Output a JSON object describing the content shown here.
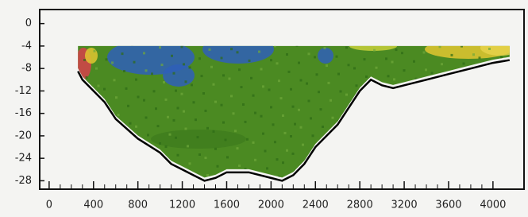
{
  "chart_data": {
    "type": "line",
    "x": [
      260,
      300,
      400,
      500,
      600,
      800,
      1000,
      1100,
      1200,
      1300,
      1400,
      1500,
      1600,
      1800,
      2000,
      2100,
      2200,
      2300,
      2400,
      2600,
      2800,
      2900,
      3000,
      3100,
      3200,
      3400,
      3600,
      3800,
      4000,
      4150
    ],
    "series": [
      {
        "color": "#000000",
        "values": [
          -8.5,
          -10,
          -12,
          -14,
          -17,
          -20.5,
          -23,
          -25,
          -26,
          -27,
          -28,
          -27.5,
          -26.5,
          -26.5,
          -27.5,
          -28,
          -27,
          -25,
          -22,
          -18,
          -12,
          -10,
          -11,
          -11.5,
          -11,
          -10,
          -9,
          -8,
          -7,
          -6.5
        ]
      }
    ],
    "fill_color": "#4b8a22",
    "xlim": [
      -85,
      4280
    ],
    "ylim": [
      -29.5,
      2.5
    ],
    "xticks": [
      0,
      400,
      800,
      1200,
      1600,
      2000,
      2400,
      2800,
      3200,
      3600,
      4000
    ],
    "yticks": [
      0,
      -4,
      -8,
      -12,
      -16,
      -20,
      -24,
      -28
    ]
  }
}
